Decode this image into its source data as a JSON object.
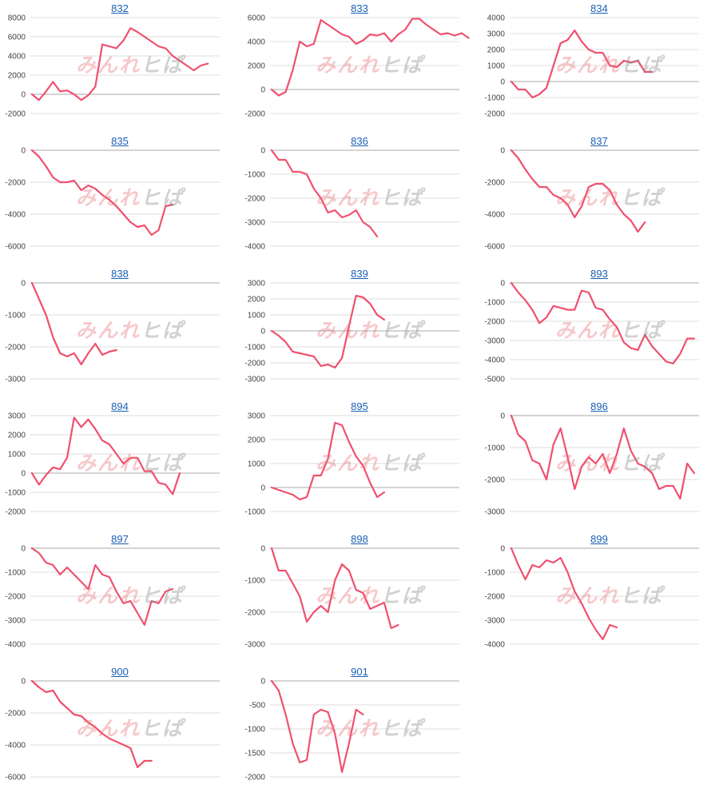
{
  "watermark": {
    "part1": "みんれ",
    "part2": "ヒぱ"
  },
  "colors": {
    "line": "#f0506e",
    "grid": "#dedede",
    "zero": "#a8a8a8",
    "title": "#1a5fb4"
  },
  "chart_data": [
    {
      "type": "line",
      "title": "832",
      "ylim": [
        -2000,
        8000
      ],
      "yticks": [
        8000,
        6000,
        4000,
        2000,
        0,
        -2000
      ],
      "values": [
        0,
        -600,
        300,
        1300,
        300,
        400,
        0,
        -600,
        -100,
        800,
        5200,
        5000,
        4800,
        5600,
        6900,
        6500,
        6000,
        5500,
        5000,
        4800,
        4000,
        3500,
        3000,
        2500,
        3000,
        3200
      ]
    },
    {
      "type": "line",
      "title": "833",
      "ylim": [
        -2000,
        6000
      ],
      "yticks": [
        6000,
        4000,
        2000,
        0,
        -2000
      ],
      "values": [
        0,
        -500,
        -200,
        1600,
        4000,
        3600,
        3800,
        5800,
        5400,
        5000,
        4600,
        4400,
        3800,
        4100,
        4600,
        4500,
        4700,
        4000,
        4600,
        5000,
        5900,
        5900,
        5400,
        5000,
        4600,
        4700,
        4500,
        4700,
        4300
      ]
    },
    {
      "type": "line",
      "title": "834",
      "ylim": [
        -2000,
        4000
      ],
      "yticks": [
        4000,
        3000,
        2000,
        1000,
        0,
        -1000,
        -2000
      ],
      "values": [
        0,
        -500,
        -500,
        -1000,
        -800,
        -400,
        1000,
        2400,
        2600,
        3200,
        2500,
        2000,
        1800,
        1800,
        1000,
        900,
        1300,
        1200,
        1300,
        600,
        600
      ]
    },
    {
      "type": "line",
      "title": "835",
      "ylim": [
        -6000,
        0
      ],
      "yticks": [
        0,
        -2000,
        -4000,
        -6000
      ],
      "values": [
        0,
        -400,
        -1000,
        -1700,
        -2000,
        -2000,
        -1900,
        -2500,
        -2200,
        -2400,
        -2800,
        -3100,
        -3500,
        -4000,
        -4500,
        -4800,
        -4700,
        -5300,
        -5000,
        -3500,
        -3400
      ]
    },
    {
      "type": "line",
      "title": "836",
      "ylim": [
        -4000,
        0
      ],
      "yticks": [
        0,
        -1000,
        -2000,
        -3000,
        -4000
      ],
      "values": [
        0,
        -400,
        -400,
        -900,
        -900,
        -1000,
        -1600,
        -2000,
        -2600,
        -2500,
        -2800,
        -2700,
        -2500,
        -3000,
        -3200,
        -3600
      ]
    },
    {
      "type": "line",
      "title": "837",
      "ylim": [
        -6000,
        0
      ],
      "yticks": [
        0,
        -2000,
        -4000,
        -6000
      ],
      "values": [
        0,
        -500,
        -1200,
        -1800,
        -2300,
        -2300,
        -2800,
        -3000,
        -3400,
        -4200,
        -3500,
        -2300,
        -2100,
        -2100,
        -2500,
        -3400,
        -4000,
        -4400,
        -5100,
        -4500
      ]
    },
    {
      "type": "line",
      "title": "838",
      "ylim": [
        -3000,
        0
      ],
      "yticks": [
        0,
        -1000,
        -2000,
        -3000
      ],
      "values": [
        0,
        -500,
        -1000,
        -1700,
        -2200,
        -2300,
        -2200,
        -2550,
        -2200,
        -1900,
        -2250,
        -2150,
        -2100
      ]
    },
    {
      "type": "line",
      "title": "839",
      "ylim": [
        -3000,
        3000
      ],
      "yticks": [
        3000,
        2000,
        1000,
        0,
        -1000,
        -2000,
        -3000
      ],
      "values": [
        0,
        -300,
        -700,
        -1300,
        -1400,
        -1500,
        -1600,
        -2200,
        -2100,
        -2300,
        -1700,
        300,
        2200,
        2100,
        1700,
        1000,
        700
      ]
    },
    {
      "type": "line",
      "title": "893",
      "ylim": [
        -5000,
        0
      ],
      "yticks": [
        0,
        -1000,
        -2000,
        -3000,
        -4000,
        -5000
      ],
      "values": [
        0,
        -500,
        -900,
        -1400,
        -2100,
        -1800,
        -1200,
        -1300,
        -1400,
        -1400,
        -400,
        -500,
        -1300,
        -1400,
        -1900,
        -2300,
        -3100,
        -3400,
        -3500,
        -2700,
        -3300,
        -3700,
        -4100,
        -4200,
        -3700,
        -2900,
        -2900
      ]
    },
    {
      "type": "line",
      "title": "894",
      "ylim": [
        -2000,
        3000
      ],
      "yticks": [
        3000,
        2000,
        1000,
        0,
        -1000,
        -2000
      ],
      "values": [
        0,
        -600,
        -100,
        300,
        200,
        800,
        2900,
        2400,
        2800,
        2300,
        1700,
        1500,
        1000,
        500,
        800,
        800,
        100,
        100,
        -500,
        -600,
        -1100,
        0
      ]
    },
    {
      "type": "line",
      "title": "895",
      "ylim": [
        -1000,
        3000
      ],
      "yticks": [
        3000,
        2000,
        1000,
        0,
        -1000
      ],
      "values": [
        0,
        -100,
        -200,
        -300,
        -500,
        -400,
        500,
        500,
        1200,
        2700,
        2600,
        1900,
        1300,
        900,
        200,
        -400,
        -200
      ]
    },
    {
      "type": "line",
      "title": "896",
      "ylim": [
        -3000,
        0
      ],
      "yticks": [
        0,
        -1000,
        -2000,
        -3000
      ],
      "values": [
        0,
        -600,
        -800,
        -1400,
        -1500,
        -2000,
        -900,
        -400,
        -1300,
        -2300,
        -1600,
        -1300,
        -1500,
        -1200,
        -1800,
        -1200,
        -400,
        -1100,
        -1500,
        -1600,
        -1800,
        -2300,
        -2200,
        -2200,
        -2600,
        -1500,
        -1800
      ]
    },
    {
      "type": "line",
      "title": "897",
      "ylim": [
        -4000,
        0
      ],
      "yticks": [
        0,
        -1000,
        -2000,
        -3000,
        -4000
      ],
      "values": [
        0,
        -200,
        -600,
        -700,
        -1100,
        -800,
        -1100,
        -1400,
        -1700,
        -700,
        -1100,
        -1200,
        -1800,
        -2300,
        -2200,
        -2700,
        -3200,
        -2200,
        -2300,
        -1800,
        -1700
      ]
    },
    {
      "type": "line",
      "title": "898",
      "ylim": [
        -3000,
        0
      ],
      "yticks": [
        0,
        -1000,
        -2000,
        -3000
      ],
      "values": [
        0,
        -700,
        -700,
        -1100,
        -1500,
        -2300,
        -2000,
        -1800,
        -2000,
        -1000,
        -500,
        -700,
        -1300,
        -1400,
        -1900,
        -1800,
        -1700,
        -2500,
        -2400
      ]
    },
    {
      "type": "line",
      "title": "899",
      "ylim": [
        -4000,
        0
      ],
      "yticks": [
        0,
        -1000,
        -2000,
        -3000,
        -4000
      ],
      "values": [
        0,
        -700,
        -1300,
        -700,
        -800,
        -500,
        -600,
        -400,
        -1000,
        -1800,
        -2300,
        -2900,
        -3400,
        -3800,
        -3200,
        -3300
      ]
    },
    {
      "type": "line",
      "title": "900",
      "ylim": [
        -6000,
        0
      ],
      "yticks": [
        0,
        -2000,
        -4000,
        -6000
      ],
      "values": [
        0,
        -400,
        -700,
        -600,
        -1300,
        -1700,
        -2100,
        -2200,
        -2600,
        -2900,
        -3300,
        -3600,
        -3800,
        -4000,
        -4200,
        -5400,
        -5000,
        -5000
      ]
    },
    {
      "type": "line",
      "title": "901",
      "ylim": [
        -2000,
        0
      ],
      "yticks": [
        0,
        -500,
        -1000,
        -1500,
        -2000
      ],
      "values": [
        0,
        -200,
        -700,
        -1300,
        -1700,
        -1650,
        -700,
        -600,
        -650,
        -1100,
        -1900,
        -1300,
        -600,
        -700
      ]
    }
  ]
}
